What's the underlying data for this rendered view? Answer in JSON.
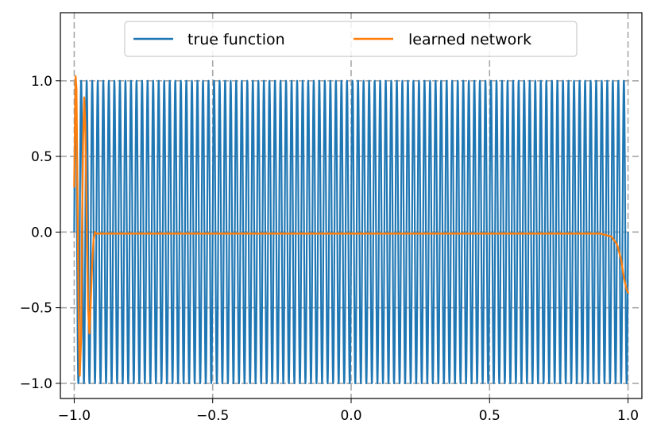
{
  "chart_data": {
    "type": "line",
    "title": "",
    "xlabel": "",
    "ylabel": "",
    "xlim": [
      -1.05,
      1.05
    ],
    "ylim": [
      -1.1,
      1.45
    ],
    "xticks": [
      -1.0,
      -0.5,
      0.0,
      0.5,
      1.0
    ],
    "xtick_labels": [
      "−1.0",
      "−0.5",
      "0.0",
      "0.5",
      "1.0"
    ],
    "yticks": [
      -1.0,
      -0.5,
      0.0,
      0.5,
      1.0
    ],
    "ytick_labels": [
      "−1.0",
      "−0.5",
      "0.0",
      "0.5",
      "1.0"
    ],
    "grid": true,
    "legend_position": "top-center",
    "series": [
      {
        "name": "true function",
        "color": "#1f77b4",
        "function": "sin(100*pi*x)",
        "x_range": [
          -1.0,
          1.0
        ],
        "sampled": {
          "x": [
            -1.0,
            -0.995,
            -0.99,
            -0.985,
            -0.98,
            -0.975,
            -0.97
          ],
          "y": [
            0.0,
            1.0,
            0.0,
            -1.0,
            0.0,
            1.0,
            0.0
          ]
        }
      },
      {
        "name": "learned network",
        "color": "#ff7f0e",
        "x": [
          -1.0,
          -0.995,
          -0.992,
          -0.988,
          -0.984,
          -0.98,
          -0.975,
          -0.972,
          -0.968,
          -0.964,
          -0.96,
          -0.955,
          -0.95,
          -0.945,
          -0.94,
          -0.935,
          -0.93,
          -0.925,
          -0.92,
          -0.915,
          -0.91,
          -0.9,
          -0.85,
          -0.8,
          -0.5,
          0.0,
          0.5,
          0.8,
          0.85,
          0.88,
          0.9,
          0.92,
          0.94,
          0.96,
          0.975,
          0.985,
          0.995,
          1.0
        ],
        "y": [
          0.3,
          1.03,
          0.95,
          0.2,
          -0.55,
          -0.95,
          -0.7,
          0.0,
          0.6,
          0.89,
          0.7,
          0.1,
          -0.5,
          -0.67,
          -0.45,
          -0.2,
          -0.05,
          0.0,
          -0.01,
          -0.01,
          -0.01,
          -0.01,
          -0.01,
          -0.01,
          -0.01,
          -0.01,
          -0.01,
          -0.01,
          -0.01,
          -0.01,
          -0.01,
          -0.02,
          -0.03,
          -0.08,
          -0.18,
          -0.3,
          -0.38,
          -0.4
        ]
      }
    ]
  }
}
